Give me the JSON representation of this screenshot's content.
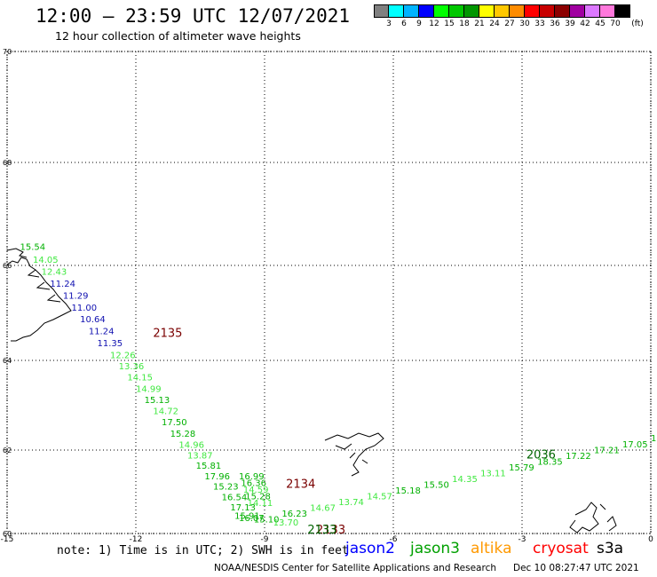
{
  "header": {
    "title": "12:00 – 23:59 UTC 12/07/2021",
    "subtitle": "12 hour collection of altimeter wave heights"
  },
  "legend": {
    "unit": "(ft)",
    "bins": [
      {
        "label": "3",
        "color": "#808080"
      },
      {
        "label": "6",
        "color": "#00ffff"
      },
      {
        "label": "9",
        "color": "#00b4ff"
      },
      {
        "label": "12",
        "color": "#0000ff"
      },
      {
        "label": "15",
        "color": "#00ff00"
      },
      {
        "label": "18",
        "color": "#00c800"
      },
      {
        "label": "21",
        "color": "#009600"
      },
      {
        "label": "24",
        "color": "#ffff00"
      },
      {
        "label": "27",
        "color": "#ffc800"
      },
      {
        "label": "30",
        "color": "#ff8c00"
      },
      {
        "label": "33",
        "color": "#ff0000"
      },
      {
        "label": "36",
        "color": "#c80000"
      },
      {
        "label": "39",
        "color": "#8c0000"
      },
      {
        "label": "42",
        "color": "#a000a0"
      },
      {
        "label": "45",
        "color": "#dc78ff"
      },
      {
        "label": "70",
        "color": "#ff78dc"
      },
      {
        "label": "",
        "color": "#000000"
      }
    ]
  },
  "map": {
    "lon_range": [
      -15,
      0
    ],
    "lat_range": [
      60,
      70
    ],
    "lon_ticks": [
      "-15",
      "-12",
      "-9",
      "-6",
      "-3",
      "0"
    ],
    "lon_tick_values": [
      -15,
      -12,
      -9,
      -6,
      -3,
      0
    ],
    "lat_ticks": [
      "60",
      "62",
      "64",
      "66",
      "68",
      "70"
    ],
    "lat_tick_values": [
      60,
      62,
      64,
      66,
      68,
      70
    ],
    "time_labels": [
      {
        "text": "2135",
        "lon": -11.6,
        "lat": 64.5,
        "color": "#7a0000"
      },
      {
        "text": "2134",
        "lon": -8.5,
        "lat": 61.1,
        "color": "#7a0000"
      },
      {
        "text": "2133",
        "lon": -7.8,
        "lat": 60.0,
        "color": "#7a0000"
      },
      {
        "text": "2133",
        "lon": -8.0,
        "lat": 60.0,
        "color": "#006400"
      },
      {
        "text": "2036",
        "lon": -2.9,
        "lat": 61.8,
        "color": "#006400"
      }
    ],
    "tracks": [
      {
        "color_group": "cryosat",
        "points": [
          {
            "lon": -14.7,
            "lat": 66.3,
            "v": "15.54",
            "c": "#00b000"
          },
          {
            "lon": -14.4,
            "lat": 66.05,
            "v": "14.05",
            "c": "#40e840"
          },
          {
            "lon": -14.2,
            "lat": 65.8,
            "v": "12.43",
            "c": "#40e840"
          },
          {
            "lon": -14.0,
            "lat": 65.55,
            "v": "11.24",
            "c": "#1010b0"
          },
          {
            "lon": -13.7,
            "lat": 65.3,
            "v": "11.29",
            "c": "#1010b0"
          },
          {
            "lon": -13.5,
            "lat": 65.05,
            "v": "11.00",
            "c": "#1010b0"
          },
          {
            "lon": -13.3,
            "lat": 64.8,
            "v": "10.64",
            "c": "#1010b0"
          },
          {
            "lon": -13.1,
            "lat": 64.55,
            "v": "11.24",
            "c": "#1010b0"
          },
          {
            "lon": -12.9,
            "lat": 64.3,
            "v": "11.35",
            "c": "#1010b0"
          },
          {
            "lon": -12.6,
            "lat": 64.05,
            "v": "12.26",
            "c": "#40e840"
          },
          {
            "lon": -12.4,
            "lat": 63.8,
            "v": "13.36",
            "c": "#40e840"
          },
          {
            "lon": -12.2,
            "lat": 63.55,
            "v": "14.15",
            "c": "#40e840"
          },
          {
            "lon": -12.0,
            "lat": 63.3,
            "v": "14.99",
            "c": "#40e840"
          },
          {
            "lon": -11.8,
            "lat": 63.05,
            "v": "15.13",
            "c": "#00b000"
          },
          {
            "lon": -11.6,
            "lat": 62.8,
            "v": "14.72",
            "c": "#40e840"
          },
          {
            "lon": -11.4,
            "lat": 62.55,
            "v": "17.50",
            "c": "#00b000"
          },
          {
            "lon": -11.2,
            "lat": 62.3,
            "v": "15.28",
            "c": "#00b000"
          },
          {
            "lon": -11.0,
            "lat": 62.05,
            "v": "14.96",
            "c": "#40e840"
          },
          {
            "lon": -10.8,
            "lat": 61.8,
            "v": "13.87",
            "c": "#40e840"
          },
          {
            "lon": -10.6,
            "lat": 61.55,
            "v": "15.81",
            "c": "#00b000"
          },
          {
            "lon": -10.4,
            "lat": 61.3,
            "v": "17.96",
            "c": "#00b000"
          },
          {
            "lon": -10.2,
            "lat": 61.05,
            "v": "15.23",
            "c": "#00b000"
          },
          {
            "lon": -10.0,
            "lat": 60.8,
            "v": "16.54",
            "c": "#00b000"
          },
          {
            "lon": -9.8,
            "lat": 60.55,
            "v": "17.13",
            "c": "#00b000"
          },
          {
            "lon": -9.6,
            "lat": 60.3,
            "v": "16.07",
            "c": "#00b000"
          }
        ]
      }
    ]
  },
  "annotations": {
    "note": "note: 1) Time is in UTC; 2) SWH is in feet",
    "satellites": [
      {
        "name": "jason2",
        "color": "#0000ff"
      },
      {
        "name": "jason3",
        "color": "#00a000"
      },
      {
        "name": "altika",
        "color": "#ff9900"
      },
      {
        "name": "cryosat",
        "color": "#ff0000"
      },
      {
        "name": "s3a",
        "color": "#000000"
      }
    ]
  },
  "footer": {
    "agency": "NOAA/NESDIS Center for Satellite Applications and Research",
    "timestamp": "Dec 10 08:27:47 UTC 2021"
  }
}
